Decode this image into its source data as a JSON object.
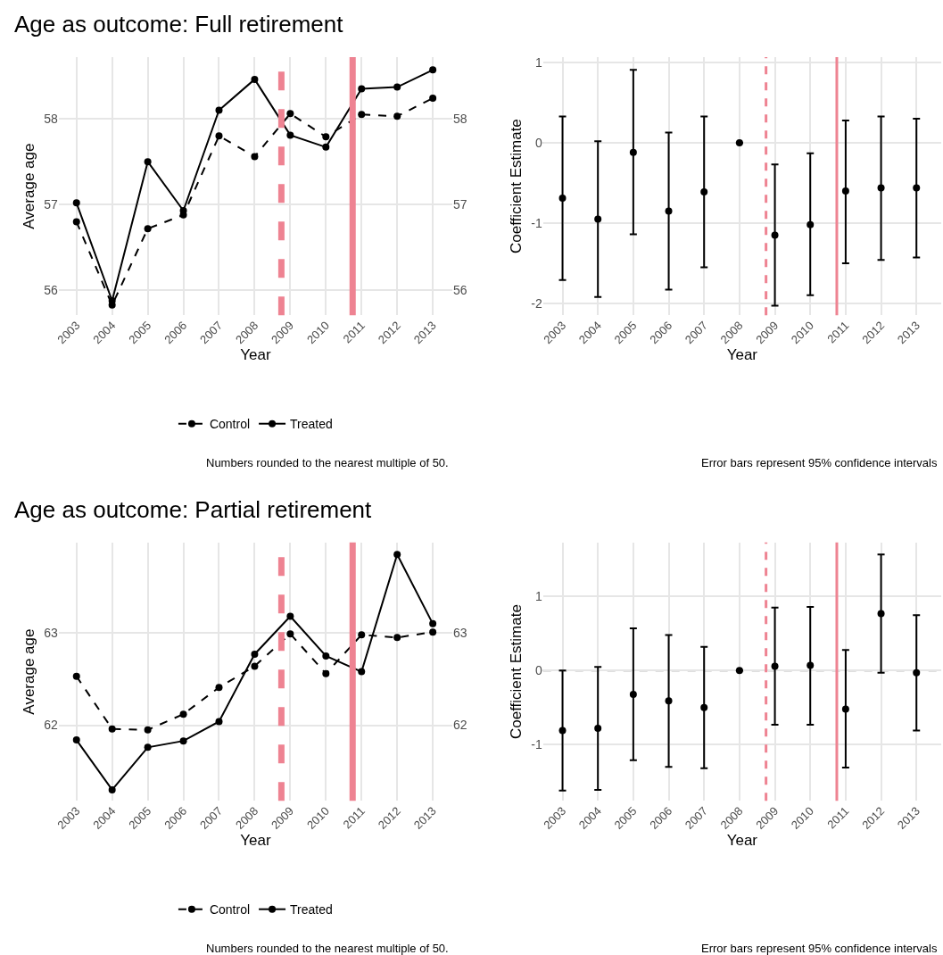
{
  "chart_data": [
    {
      "type": "line",
      "title": "Age as outcome: Full retirement",
      "xlabel": "Year",
      "ylabel": "Average age",
      "x": [
        2003,
        2004,
        2005,
        2006,
        2007,
        2008,
        2009,
        2010,
        2011,
        2012,
        2013
      ],
      "series": [
        {
          "name": "Control",
          "color": "#000000",
          "line_style": "dashed",
          "values": [
            56.8,
            55.83,
            56.72,
            56.88,
            57.8,
            57.56,
            58.06,
            57.79,
            58.05,
            58.03,
            58.24
          ]
        },
        {
          "name": "Treated",
          "color": "#000000",
          "line_style": "solid",
          "values": [
            57.02,
            55.88,
            57.5,
            56.93,
            58.1,
            58.46,
            57.81,
            57.67,
            58.35,
            58.37,
            58.57
          ]
        }
      ],
      "xlim": [
        2002.5,
        2013.55
      ],
      "xticks": [
        2003,
        2004,
        2005,
        2006,
        2007,
        2008,
        2009,
        2010,
        2011,
        2012,
        2013
      ],
      "ylim": [
        55.71,
        58.72
      ],
      "yticks": [
        56,
        57,
        58
      ],
      "y2lim": [
        55.71,
        58.72
      ],
      "y2ticks": [
        56,
        57,
        58
      ],
      "ref_lines": [
        {
          "axis": "x",
          "value": 2008.75,
          "color": "#ee8392",
          "line_style": "dashed"
        },
        {
          "axis": "x",
          "value": 2010.75,
          "color": "#ee8392",
          "line_style": "solid"
        }
      ],
      "marker": "circle",
      "grid": true,
      "legend": "bottom",
      "annotations": [
        "Numbers rounded to the nearest multiple of 50."
      ]
    },
    {
      "type": "scatter",
      "xlabel": "Year",
      "ylabel": "Coefficient Estimate",
      "x": [
        2003,
        2004,
        2005,
        2006,
        2007,
        2008,
        2009,
        2010,
        2011,
        2012,
        2013
      ],
      "values": [
        -0.69,
        -0.95,
        -0.12,
        -0.85,
        -0.61,
        0,
        -1.15,
        -1.02,
        -0.6,
        -0.56,
        -0.56
      ],
      "errors": [
        [
          -1.71,
          0.33
        ],
        [
          -1.92,
          0.02
        ],
        [
          -1.14,
          0.91
        ],
        [
          -1.83,
          0.13
        ],
        [
          -1.55,
          0.33
        ],
        null,
        [
          -2.03,
          -0.27
        ],
        [
          -1.9,
          -0.13
        ],
        [
          -1.5,
          0.28
        ],
        [
          -1.46,
          0.33
        ],
        [
          -1.43,
          0.3
        ]
      ],
      "color": "#000000",
      "xlim": [
        2002.45,
        2013.7
      ],
      "xticks": [
        2003,
        2004,
        2005,
        2006,
        2007,
        2008,
        2009,
        2010,
        2011,
        2012,
        2013
      ],
      "ylim": [
        -2.15,
        1.07
      ],
      "yticks": [
        -2,
        -1,
        0,
        1
      ],
      "ref_lines": [
        {
          "axis": "y",
          "value": 0,
          "color": "#808080",
          "line_style": "dashed"
        },
        {
          "axis": "x",
          "value": 2008.75,
          "color": "#ee8392",
          "line_style": "dashed"
        },
        {
          "axis": "x",
          "value": 2010.75,
          "color": "#ee8392",
          "line_style": "solid"
        }
      ],
      "marker": "circle",
      "grid": true,
      "annotations": [
        "Error bars represent 95% confidence intervals"
      ]
    },
    {
      "type": "line",
      "title": "Age as outcome: Partial retirement",
      "xlabel": "Year",
      "ylabel": "Average age",
      "x": [
        2003,
        2004,
        2005,
        2006,
        2007,
        2008,
        2009,
        2010,
        2011,
        2012,
        2013
      ],
      "series": [
        {
          "name": "Control",
          "color": "#000000",
          "line_style": "dashed",
          "values": [
            62.53,
            61.96,
            61.95,
            62.12,
            62.41,
            62.64,
            62.99,
            62.56,
            62.98,
            62.95,
            63.01
          ]
        },
        {
          "name": "Treated",
          "color": "#000000",
          "line_style": "solid",
          "values": [
            61.84,
            61.3,
            61.76,
            61.83,
            62.04,
            62.77,
            63.18,
            62.75,
            62.58,
            63.85,
            63.1
          ]
        }
      ],
      "xlim": [
        2002.5,
        2013.55
      ],
      "xticks": [
        2003,
        2004,
        2005,
        2006,
        2007,
        2008,
        2009,
        2010,
        2011,
        2012,
        2013
      ],
      "ylim": [
        61.18,
        63.98
      ],
      "yticks": [
        62,
        63
      ],
      "y2lim": [
        61.18,
        63.98
      ],
      "y2ticks": [
        62,
        63
      ],
      "ref_lines": [
        {
          "axis": "x",
          "value": 2008.75,
          "color": "#ee8392",
          "line_style": "dashed"
        },
        {
          "axis": "x",
          "value": 2010.75,
          "color": "#ee8392",
          "line_style": "solid"
        }
      ],
      "marker": "circle",
      "grid": true,
      "legend": "bottom",
      "annotations": [
        "Numbers rounded to the nearest multiple of 50."
      ]
    },
    {
      "type": "scatter",
      "xlabel": "Year",
      "ylabel": "Coefficient Estimate",
      "x": [
        2003,
        2004,
        2005,
        2006,
        2007,
        2008,
        2009,
        2010,
        2011,
        2012,
        2013
      ],
      "values": [
        -0.81,
        -0.78,
        -0.32,
        -0.41,
        -0.5,
        0,
        0.06,
        0.07,
        -0.52,
        0.77,
        -0.03
      ],
      "errors": [
        [
          -1.62,
          0.0
        ],
        [
          -1.61,
          0.05
        ],
        [
          -1.21,
          0.57
        ],
        [
          -1.3,
          0.48
        ],
        [
          -1.32,
          0.32
        ],
        null,
        [
          -0.73,
          0.85
        ],
        [
          -0.73,
          0.86
        ],
        [
          -1.31,
          0.28
        ],
        [
          -0.03,
          1.57
        ],
        [
          -0.81,
          0.75
        ]
      ],
      "color": "#000000",
      "xlim": [
        2002.45,
        2013.7
      ],
      "xticks": [
        2003,
        2004,
        2005,
        2006,
        2007,
        2008,
        2009,
        2010,
        2011,
        2012,
        2013
      ],
      "ylim": [
        -1.76,
        1.73
      ],
      "yticks": [
        -1,
        0,
        1
      ],
      "ref_lines": [
        {
          "axis": "y",
          "value": 0,
          "color": "#808080",
          "line_style": "dashed"
        },
        {
          "axis": "x",
          "value": 2008.75,
          "color": "#ee8392",
          "line_style": "dashed"
        },
        {
          "axis": "x",
          "value": 2010.75,
          "color": "#ee8392",
          "line_style": "solid"
        }
      ],
      "marker": "circle",
      "grid": true,
      "annotations": [
        "Error bars represent 95% confidence intervals"
      ]
    }
  ]
}
